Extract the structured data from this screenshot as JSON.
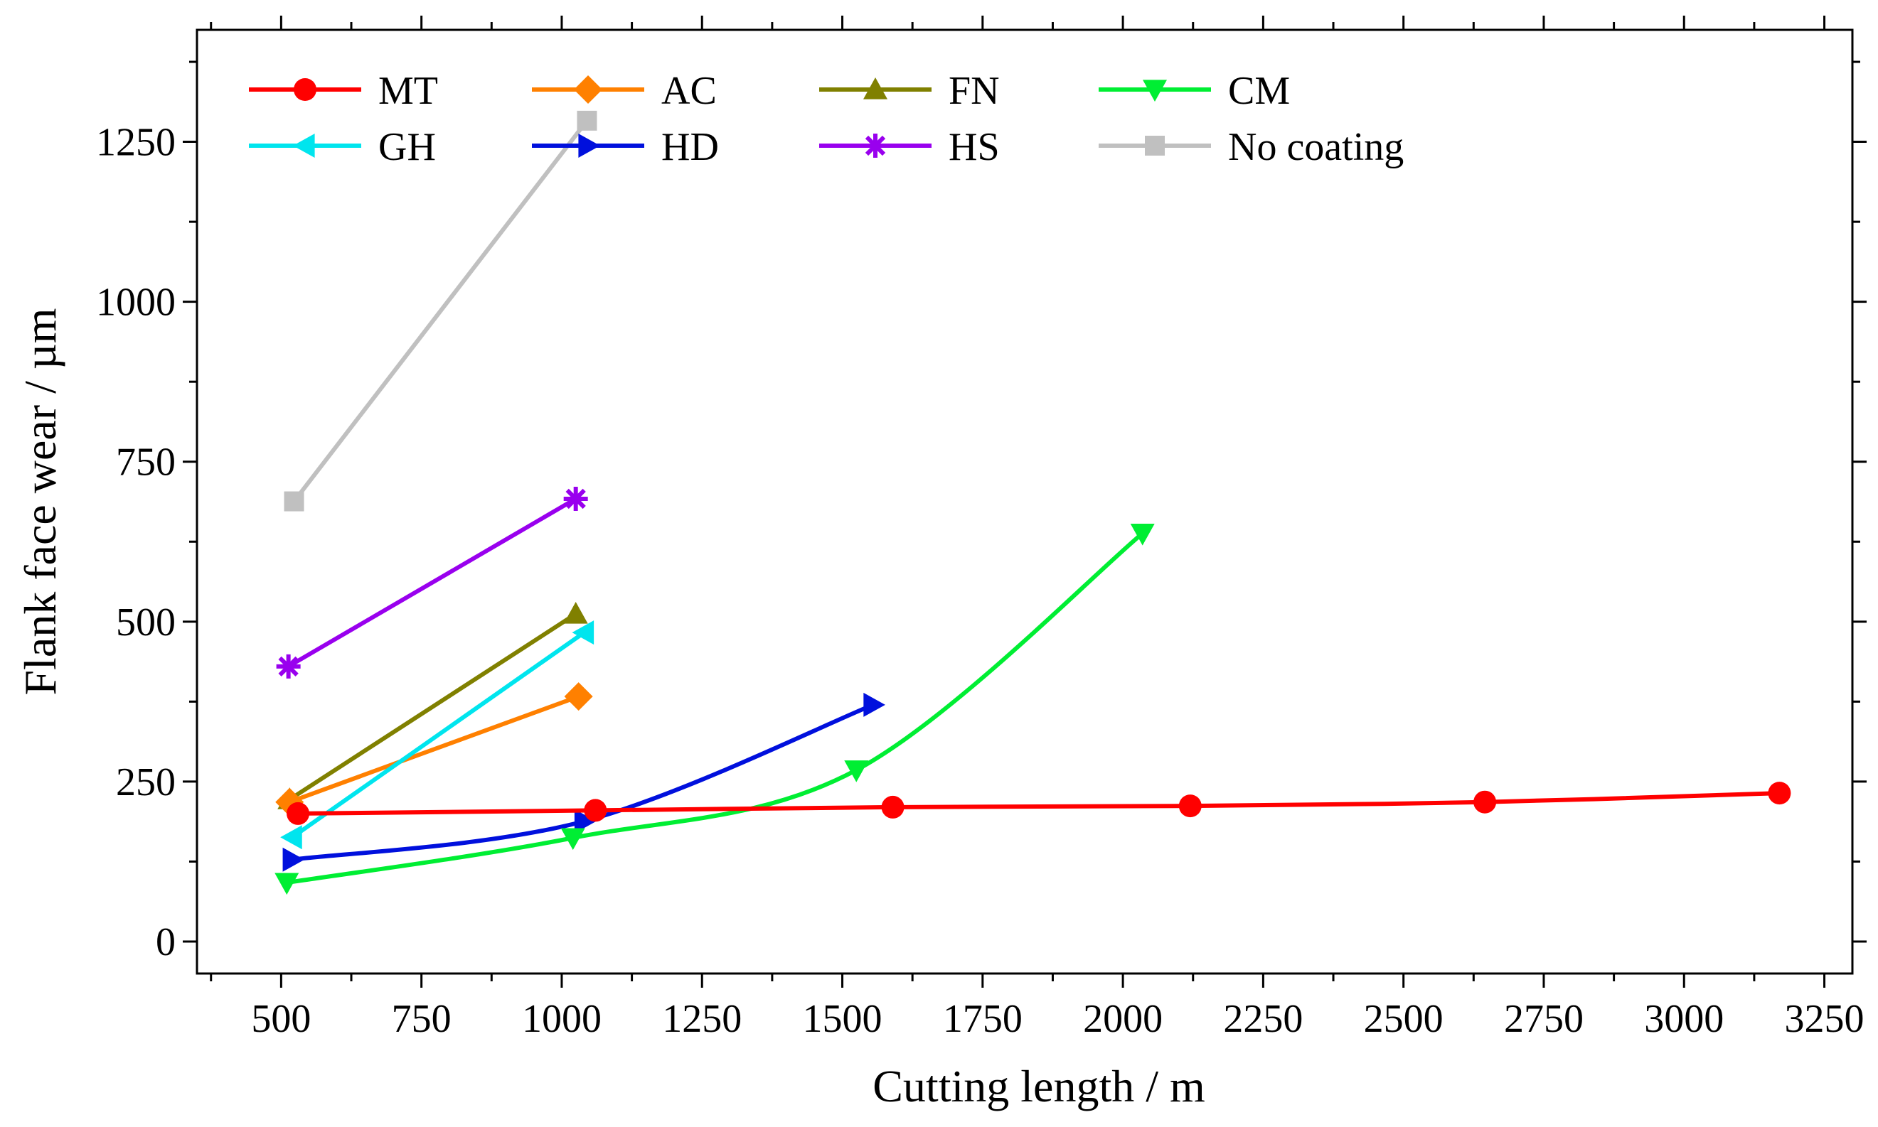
{
  "chart_data": {
    "type": "line",
    "title": "",
    "xlabel": "Cutting length  / m",
    "ylabel": "Flank face wear / µm",
    "xlim": [
      350,
      3300
    ],
    "ylim": [
      -50,
      1425
    ],
    "x_ticks": [
      500,
      750,
      1000,
      1250,
      1500,
      1750,
      2000,
      2250,
      2500,
      2750,
      3000,
      3250
    ],
    "y_ticks": [
      0,
      250,
      500,
      750,
      1000,
      1250
    ],
    "legend_position": "top-left",
    "series": [
      {
        "name": "MT",
        "color": "#ff0000",
        "marker": "circle",
        "smooth": true,
        "x": [
          530,
          1060,
          1590,
          2120,
          2645,
          3170
        ],
        "y": [
          200,
          205,
          210,
          212,
          218,
          232
        ]
      },
      {
        "name": "AC",
        "color": "#ff8000",
        "marker": "diamond",
        "smooth": false,
        "x": [
          515,
          1030
        ],
        "y": [
          218,
          383
        ]
      },
      {
        "name": "FN",
        "color": "#808000",
        "marker": "triangle-up",
        "smooth": false,
        "x": [
          515,
          1025
        ],
        "y": [
          222,
          512
        ]
      },
      {
        "name": "CM",
        "color": "#00ee33",
        "marker": "triangle-down",
        "smooth": true,
        "x": [
          510,
          1020,
          1525,
          2035
        ],
        "y": [
          92,
          162,
          268,
          638
        ]
      },
      {
        "name": "GH",
        "color": "#00e5ee",
        "marker": "triangle-left",
        "smooth": false,
        "x": [
          520,
          1040
        ],
        "y": [
          163,
          483
        ]
      },
      {
        "name": "HD",
        "color": "#0010dd",
        "marker": "triangle-right",
        "smooth": true,
        "x": [
          520,
          1040,
          1555
        ],
        "y": [
          128,
          188,
          370
        ]
      },
      {
        "name": "HS",
        "color": "#9900ee",
        "marker": "asterisk",
        "smooth": false,
        "x": [
          513,
          1025
        ],
        "y": [
          430,
          692
        ]
      },
      {
        "name": "No coating",
        "color": "#c0c0c0",
        "marker": "square",
        "smooth": false,
        "x": [
          523,
          1045
        ],
        "y": [
          688,
          1283
        ]
      }
    ],
    "legend_layout": [
      [
        "MT",
        "AC",
        "FN",
        "CM"
      ],
      [
        "GH",
        "HD",
        "HS",
        "No coating"
      ]
    ]
  }
}
